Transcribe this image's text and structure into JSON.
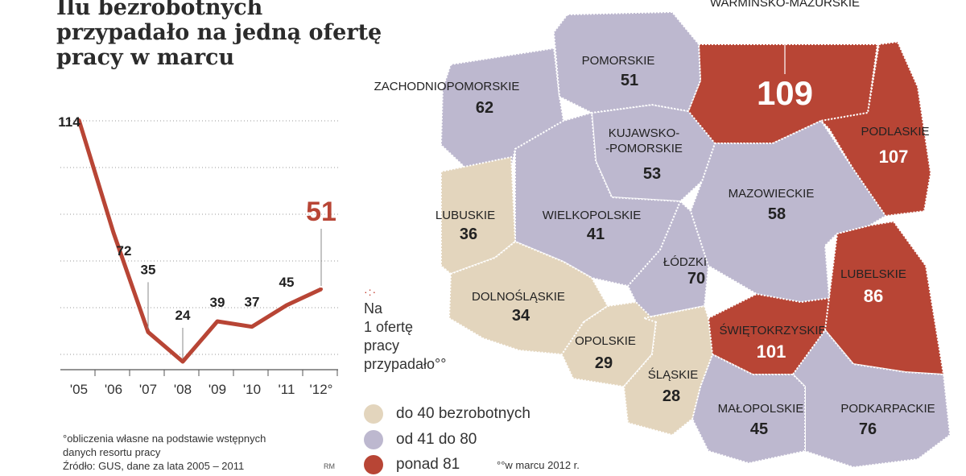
{
  "title": "Ilu bezrobotnych przypadało na jedną ofertę pracy w marcu",
  "chart_data": [
    {
      "type": "line",
      "x": [
        "'05",
        "'06",
        "'07",
        "'08",
        "'09",
        "'10",
        "'11",
        "'12"
      ],
      "x_tick_labels": [
        "'05",
        "'06",
        "'07",
        "'08",
        "'09",
        "'10",
        "'11",
        "'12°"
      ],
      "series": [
        {
          "values": [
            114,
            72,
            35,
            24,
            39,
            37,
            45,
            51
          ]
        }
      ],
      "data_labels": [
        "114",
        "72",
        "35",
        "24",
        "39",
        "37",
        "45",
        "51"
      ],
      "ylim": [
        20,
        115
      ],
      "grid": "horizontal dotted",
      "color": "#b84535"
    },
    {
      "type": "choropleth",
      "regions": [
        {
          "name": "WARMIŃSKO-MAZURSKIE",
          "value": 109,
          "class": "ponad 81"
        },
        {
          "name": "PODLASKIE",
          "value": 107,
          "class": "ponad 81"
        },
        {
          "name": "ŚWIĘTOKRZYSKIE",
          "value": 101,
          "class": "ponad 81"
        },
        {
          "name": "LUBELSKIE",
          "value": 86,
          "class": "ponad 81"
        },
        {
          "name": "PODKARPACKIE",
          "value": 76,
          "class": "od 41 do 80"
        },
        {
          "name": "ŁÓDZKIE",
          "value": 70,
          "class": "od 41 do 80"
        },
        {
          "name": "ZACHODNIOPOMORSKIE",
          "value": 62,
          "class": "od 41 do 80"
        },
        {
          "name": "MAZOWIECKIE",
          "value": 58,
          "class": "od 41 do 80"
        },
        {
          "name": "KUJAWSKO-\n-POMORSKIE",
          "value": 53,
          "class": "od 41 do 80"
        },
        {
          "name": "POMORSKIE",
          "value": 51,
          "class": "od 41 do 80"
        },
        {
          "name": "MAŁOPOLSKIE",
          "value": 45,
          "class": "od 41 do 80"
        },
        {
          "name": "WIELKOPOLSKIE",
          "value": 41,
          "class": "od 41 do 80"
        },
        {
          "name": "LUBUSKIE",
          "value": 36,
          "class": "do 40 bezrobotnych"
        },
        {
          "name": "DOLNOŚLĄSKIE",
          "value": 34,
          "class": "do 40 bezrobotnych"
        },
        {
          "name": "OPOLSKIE",
          "value": 29,
          "class": "do 40 bezrobotnych"
        },
        {
          "name": "ŚLĄSKIE",
          "value": 28,
          "class": "do 40 bezrobotnych"
        }
      ]
    }
  ],
  "legend": {
    "heading": "Na\n1 ofertę\npracy\nprzypadało°°",
    "dots": "·:·",
    "items": [
      {
        "label": "do 40 bezrobotnych",
        "color": "#e3d5bd"
      },
      {
        "label": "od 41 do 80",
        "color": "#bdb8cf"
      },
      {
        "label": "ponad 81",
        "color": "#b84535"
      }
    ]
  },
  "colors": {
    "line": "#b84535",
    "low": "#e3d5bd",
    "mid": "#bdb8cf",
    "high": "#b84535"
  },
  "footnote": "°obliczenia własne na podstawie wstępnych\n  danych resortu pracy\nŹródło: GUS, dane za lata 2005 – 2011",
  "credit": "RM",
  "note_march": "°°w marcu 2012 r."
}
